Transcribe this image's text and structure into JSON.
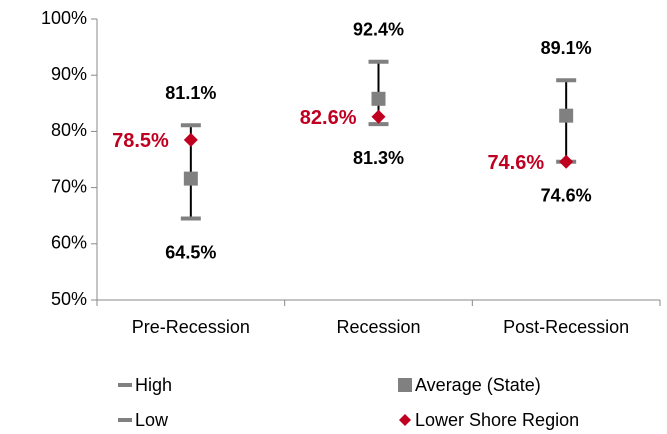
{
  "chart_data": {
    "type": "high-low",
    "categories": [
      "Pre-Recession",
      "Recession",
      "Post-Recession"
    ],
    "ylim": [
      50,
      100
    ],
    "yticks": [
      {
        "value": 50,
        "label": "50%"
      },
      {
        "value": 60,
        "label": "60%"
      },
      {
        "value": 70,
        "label": "70%"
      },
      {
        "value": 80,
        "label": "80%"
      },
      {
        "value": 90,
        "label": "90%"
      },
      {
        "value": 100,
        "label": "100%"
      }
    ],
    "series": [
      {
        "name": "High",
        "color": "#808080",
        "values": [
          81.1,
          92.4,
          89.1
        ],
        "value_labels": [
          "81.1%",
          "92.4%",
          "89.1%"
        ]
      },
      {
        "name": "Low",
        "color": "#808080",
        "values": [
          64.5,
          81.3,
          74.6
        ],
        "value_labels": [
          "64.5%",
          "81.3%",
          "74.6%"
        ]
      },
      {
        "name": "Average (State)",
        "color": "#808080",
        "values": [
          71.6,
          85.8,
          82.8
        ]
      },
      {
        "name": "Lower Shore Region",
        "color": "#c00020",
        "values": [
          78.5,
          82.6,
          74.6
        ],
        "value_labels": [
          "78.5%",
          "82.6%",
          "74.6%"
        ]
      }
    ]
  }
}
